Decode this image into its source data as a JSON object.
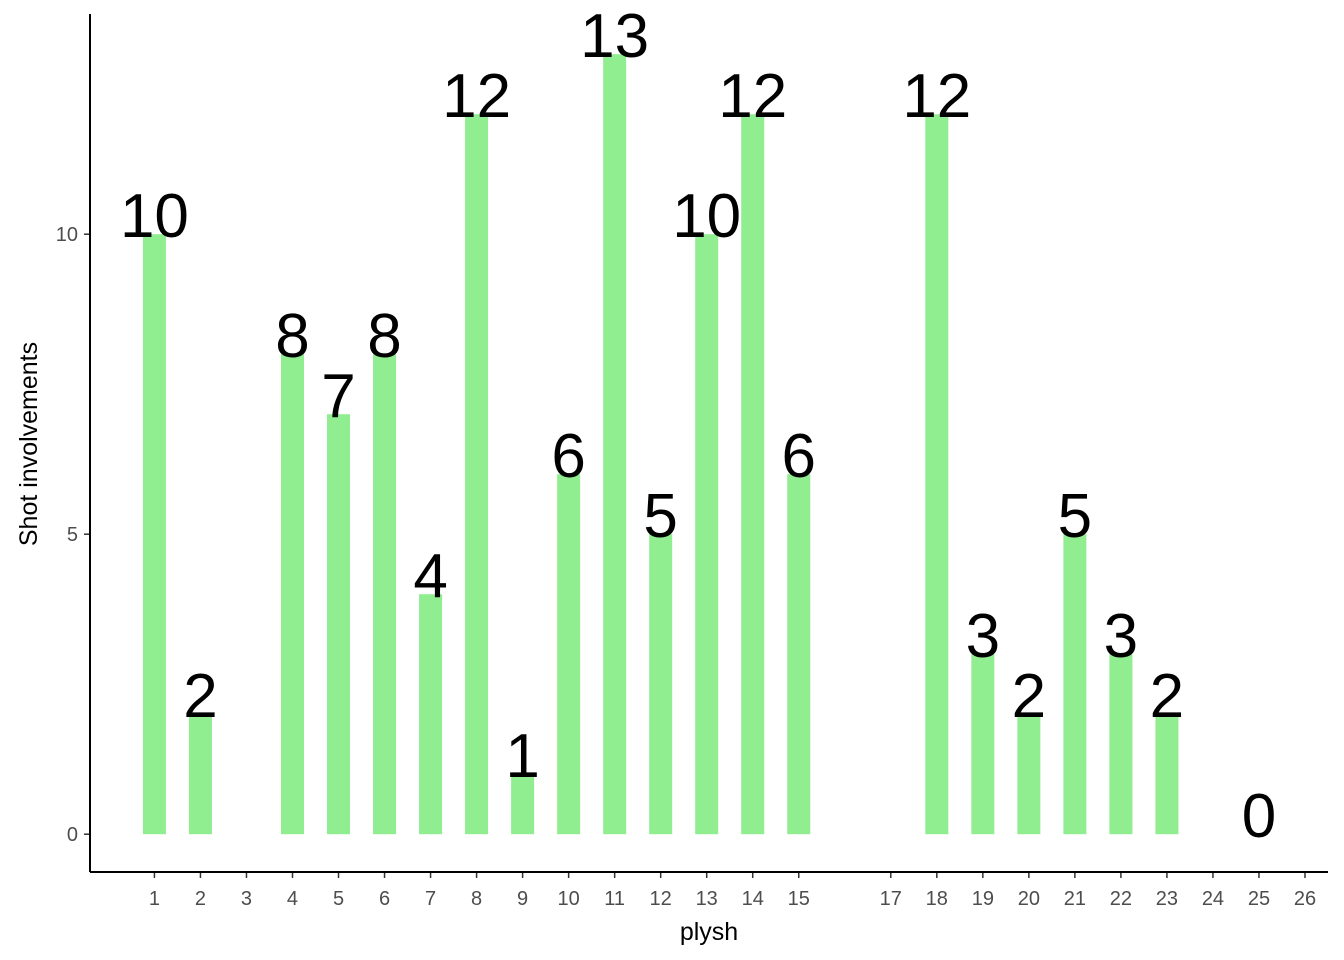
{
  "chart_data": {
    "type": "bar",
    "x": [
      1,
      2,
      4,
      5,
      6,
      7,
      8,
      9,
      10,
      11,
      12,
      13,
      14,
      15,
      18,
      19,
      20,
      21,
      22,
      23,
      25
    ],
    "values": [
      10,
      2,
      8,
      7,
      8,
      4,
      12,
      1,
      6,
      13,
      5,
      10,
      12,
      6,
      12,
      3,
      2,
      5,
      3,
      2,
      0
    ],
    "color": "#90ee90",
    "x_label": "plysh",
    "y_label": "Shot involvements",
    "xlim": [
      -0.4,
      26.5
    ],
    "xticks": [
      1,
      2,
      3,
      4,
      5,
      6,
      7,
      8,
      9,
      10,
      11,
      12,
      13,
      14,
      15,
      17,
      18,
      19,
      20,
      21,
      22,
      23,
      24,
      25,
      26
    ],
    "ylim": [
      -0.63,
      13.67
    ],
    "yticks": [
      0,
      5,
      10
    ]
  }
}
